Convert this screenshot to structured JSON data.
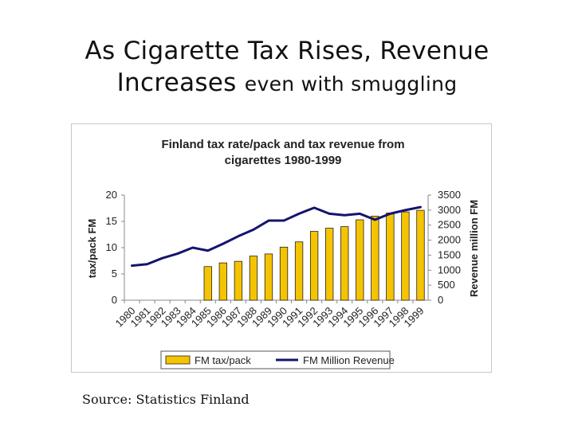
{
  "slide": {
    "title_main": "As Cigarette Tax Rises, Revenue",
    "title_line2": "Increases",
    "title_suffix": "even with smuggling",
    "source": "Source: Statistics Finland"
  },
  "chart_data": {
    "type": "bar+line",
    "title_line1": "Finland tax rate/pack and tax revenue from",
    "title_line2": "cigarettes 1980-1999",
    "ylabel": "tax/pack FM",
    "y2label": "Revenue million FM",
    "categories": [
      "1980",
      "1981",
      "1982",
      "1983",
      "1984",
      "1985",
      "1986",
      "1987",
      "1988",
      "1989",
      "1990",
      "1991",
      "1992",
      "1993",
      "1994",
      "1995",
      "1996",
      "1997",
      "1998",
      "1999"
    ],
    "ylim": [
      0,
      20
    ],
    "yticks": [
      0,
      5,
      10,
      15,
      20
    ],
    "y2lim": [
      0,
      3500
    ],
    "y2ticks": [
      0,
      500,
      1000,
      1500,
      2000,
      2500,
      3000,
      3500
    ],
    "series": [
      {
        "name": "FM tax/pack",
        "kind": "bar",
        "axis": "left",
        "color": "#f5c400",
        "values": [
          null,
          null,
          null,
          null,
          null,
          6.4,
          7.1,
          7.4,
          8.4,
          8.8,
          10.1,
          11.1,
          13.1,
          13.7,
          14.0,
          15.3,
          16.0,
          16.6,
          16.8,
          17.1
        ]
      },
      {
        "name": "FM Million Revenue",
        "kind": "line",
        "axis": "right",
        "color": "#14146e",
        "values": [
          1150,
          1200,
          1400,
          1550,
          1750,
          1650,
          1880,
          2130,
          2350,
          2650,
          2650,
          2880,
          3080,
          2880,
          2830,
          2880,
          2680,
          2880,
          3000,
          3100
        ]
      }
    ],
    "legend": "bottom"
  }
}
